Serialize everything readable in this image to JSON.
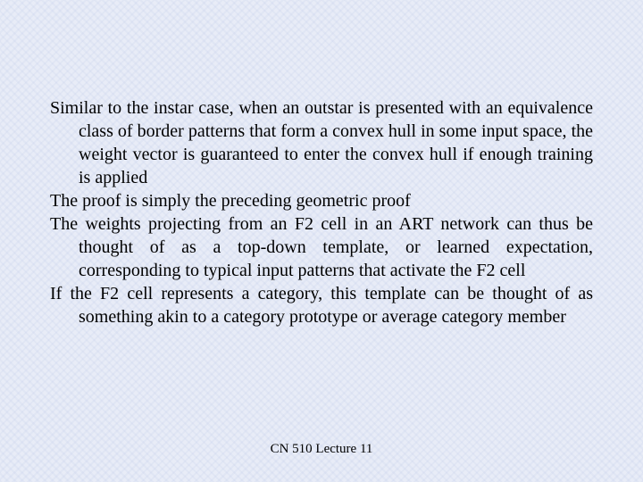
{
  "slide": {
    "background_color": "#e8ecf7",
    "texture_color": "#c8d2eb",
    "text_color": "#000000",
    "font_family": "Times New Roman",
    "body_fontsize": 20,
    "footer_fontsize": 15,
    "paragraphs": [
      "Similar to the instar case, when an outstar is presented with an equivalence class of border patterns that form a convex hull in some input space, the weight vector is guaranteed to enter the convex hull if enough training is applied",
      "The proof is simply the preceding geometric proof",
      "The weights projecting from an F2 cell in an ART network can thus be thought of as a top-down template, or learned expectation, corresponding to typical input patterns that activate the F2 cell",
      "If the F2 cell represents a category, this template can be thought of as something akin to a category prototype or average category member"
    ],
    "footer": "CN 510 Lecture 11"
  }
}
